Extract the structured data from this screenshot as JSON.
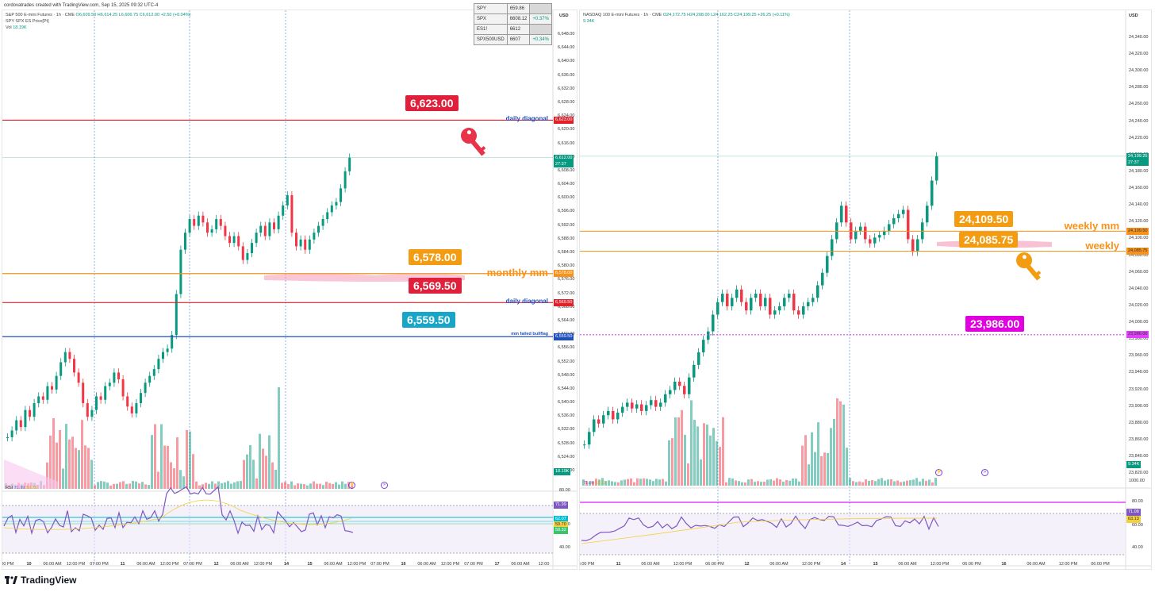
{
  "header": {
    "text": "cordovatrades created with TradingView.com, Sep 15, 2025 09:32 UTC-4"
  },
  "footer": {
    "brand": "TradingView"
  },
  "colors": {
    "up": "#089981",
    "down": "#f23645",
    "orange": "#f7931a",
    "red_line": "#e0202a",
    "blue_line": "#1f4fbf",
    "magenta": "#e040fb",
    "rsi": "#7e57c2",
    "rsi_ma": "#f4d03f",
    "cyan": "#00bcd4",
    "pink_highlight": "#f48fb1"
  },
  "left": {
    "legend": {
      "line1_title": "S&P 500 E-mini Futures · 1h · CME",
      "line1_values": "O6,609.50 H6,614.25 L6,606.75 C6,612.00 +2.50 (+0.04%)",
      "line2": "SPY SPX ES Price[Pt]",
      "line3_label": "Vol",
      "line3_value": "18.19K"
    },
    "table": [
      {
        "sym": "SPY",
        "val": "659.86",
        "chg": ""
      },
      {
        "sym": "SPX",
        "val": "6608.12",
        "chg": "+0.37%"
      },
      {
        "sym": "ES1!",
        "val": "6612",
        "chg": ""
      },
      {
        "sym": "SPX500USD",
        "val": "6607",
        "chg": "+0.34%"
      }
    ],
    "currency": "USD",
    "y_ticks": [
      "6,648.00",
      "6,644.00",
      "6,640.00",
      "6,636.00",
      "6,632.00",
      "6,628.00",
      "6,624.00",
      "6,620.00",
      "6,616.00",
      "6,612.00",
      "6,608.00",
      "6,604.00",
      "6,600.00",
      "6,596.00",
      "6,592.00",
      "6,588.00",
      "6,584.00",
      "6,580.00",
      "6,576.00",
      "6,572.00",
      "6,568.00",
      "6,564.00",
      "6,560.00",
      "6,556.00",
      "6,552.00",
      "6,548.00",
      "6,544.00",
      "6,540.00",
      "6,536.00",
      "6,532.00",
      "6,528.00",
      "6,524.00",
      "6,520.00"
    ],
    "x_ticks": [
      "6:00 PM",
      "10",
      "06:00 AM",
      "12:00 PM",
      "07:00 PM",
      "11",
      "06:00 AM",
      "12:00 PM",
      "07:00 PM",
      "12",
      "06:00 AM",
      "12:00 PM",
      "14",
      "15",
      "06:00 AM",
      "12:00 PM",
      "07:00 PM",
      "16",
      "06:00 AM",
      "12:00 PM",
      "07:00 PM",
      "17",
      "06:00 AM",
      "12:00"
    ],
    "levels": [
      {
        "price": "6,623.00",
        "note": "daily diagonal",
        "type": "red"
      },
      {
        "price": "6,578.00",
        "note": "monthly mm",
        "type": "orange"
      },
      {
        "price": "6,569.50",
        "note": "daily diagonal",
        "type": "red"
      },
      {
        "price": "6,559.50",
        "note": "mm failed bullflag",
        "type": "blue"
      }
    ],
    "current_price": "6,612.00",
    "countdown": "27:37",
    "vol_tag": "18.19K",
    "rsi": {
      "label": "RSI",
      "val1": "71.99",
      "val2": "59.70",
      "tags": [
        "71.99",
        "62.07",
        "59.70",
        "58.32"
      ],
      "ticks": [
        "80.00",
        "60.00",
        "40.00"
      ]
    }
  },
  "right": {
    "legend": {
      "line1_title": "NASDAQ 100 E-mini Futures · 1h · CME",
      "line1_values": "O24,172.75 H24,208.00 L24,162.25 C24,199.25 +26.25 (+0.11%)",
      "line2_value": "9.34K"
    },
    "currency": "USD",
    "y_ticks": [
      "24,340.00",
      "24,320.00",
      "24,300.00",
      "24,280.00",
      "24,260.00",
      "24,240.00",
      "24,220.00",
      "24,200.00",
      "24,180.00",
      "24,160.00",
      "24,140.00",
      "24,120.00",
      "24,100.00",
      "24,080.00",
      "24,060.00",
      "24,040.00",
      "24,020.00",
      "24,000.00",
      "23,980.00",
      "23,960.00",
      "23,940.00",
      "23,920.00",
      "23,900.00",
      "23,880.00",
      "23,860.00",
      "23,840.00",
      "23,820.00",
      "1000.00"
    ],
    "x_ticks": [
      "6:00 PM",
      "11",
      "06:00 AM",
      "12:00 PM",
      "06:00 PM",
      "12",
      "06:00 AM",
      "12:00 PM",
      "14",
      "15",
      "06:00 AM",
      "12:00 PM",
      "06:00 PM",
      "16",
      "06:00 AM",
      "12:00 PM",
      "06:00 PM"
    ],
    "levels": [
      {
        "price": "24,109.50",
        "note": "weekly mm",
        "type": "orange"
      },
      {
        "price": "24,085.75",
        "note": "weekly",
        "type": "orange"
      },
      {
        "price": "23,986.00",
        "note": "",
        "type": "magenta"
      }
    ],
    "current_price": "24,199.25",
    "countdown": "27:37",
    "vol_tag": "9.34K",
    "rsi": {
      "val1": "71.08",
      "val2": "63.13",
      "tags": [
        "71.08",
        "63.13"
      ],
      "ticks": [
        "80.00",
        "60.00",
        "40.00"
      ]
    }
  }
}
